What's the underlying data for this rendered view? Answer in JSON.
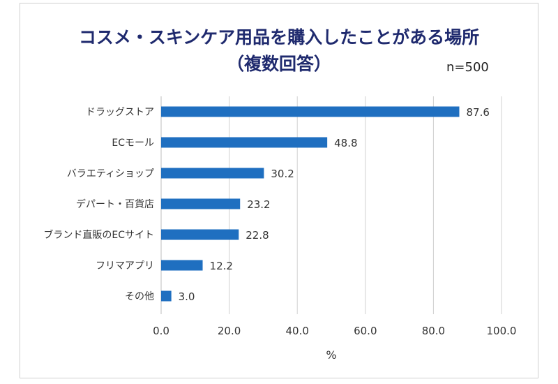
{
  "chart_data": {
    "type": "bar",
    "orientation": "horizontal",
    "title": "コスメ・スキンケア用品を購入したことがある場所",
    "subtitle": "（複数回答）",
    "note": "n=500",
    "categories": [
      "ドラッグストア",
      "ECモール",
      "バラエティショップ",
      "デパート・百貨店",
      "ブランド直販のECサイト",
      "フリマアプリ",
      "その他"
    ],
    "values": [
      87.6,
      48.8,
      30.2,
      23.2,
      22.8,
      12.2,
      3.0
    ],
    "value_labels": [
      "87.6",
      "48.8",
      "30.2",
      "23.2",
      "22.8",
      "12.2",
      "3.0"
    ],
    "xlabel": "%",
    "ylabel": "",
    "xlim": [
      0,
      100
    ],
    "x_ticks": [
      0,
      20,
      40,
      60,
      80,
      100
    ],
    "x_tick_labels": [
      "0.0",
      "20.0",
      "40.0",
      "60.0",
      "80.0",
      "100.0"
    ],
    "grid": "vertical",
    "legend": "none",
    "bar_color": "#1f6fc0",
    "grid_color": "#d0d0d0",
    "title_color": "#1f2a6e"
  }
}
